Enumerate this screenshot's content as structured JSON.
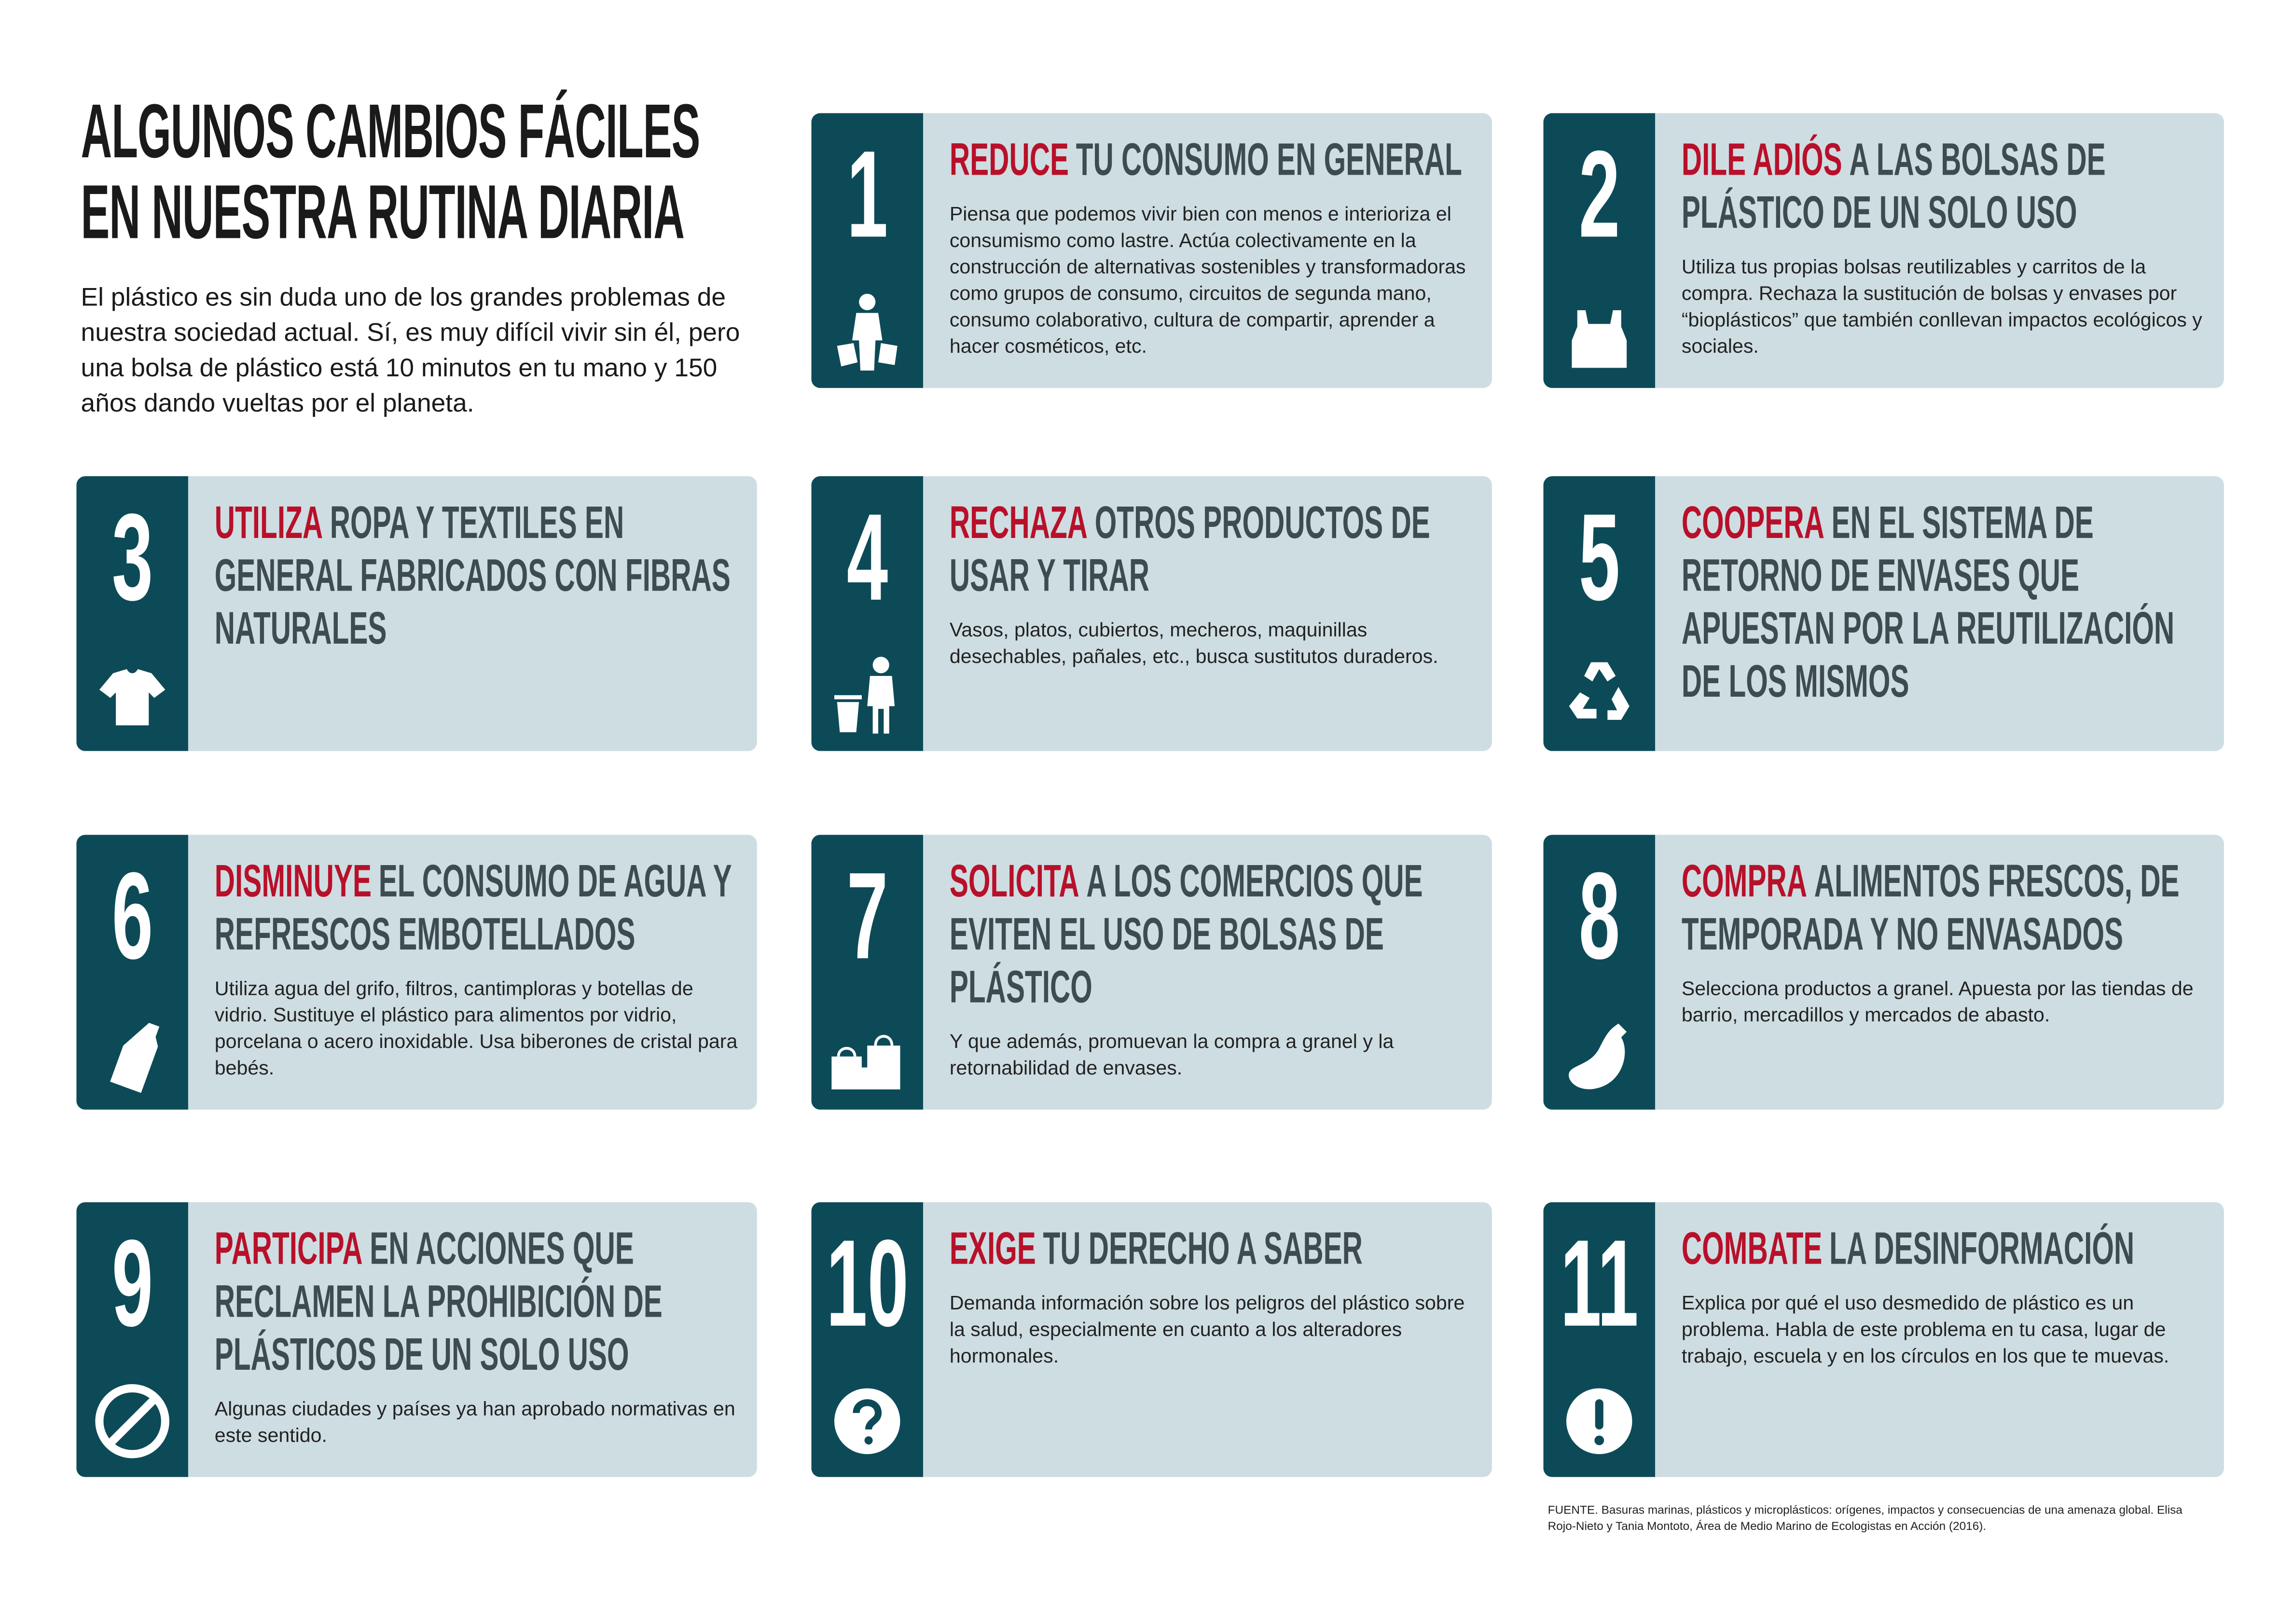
{
  "header": {
    "title_lines": [
      "ALGUNOS CAMBIOS FÁCILES",
      "EN NUESTRA RUTINA DIARIA"
    ],
    "intro": "El plástico es sin duda uno de los grandes problemas de nuestra sociedad actual. Sí, es muy difícil vivir sin él, pero una bolsa de plástico está 10 minutos en tu mano y 150 años dando vueltas por el planeta."
  },
  "cards": [
    {
      "number": "1",
      "highlight": "REDUCE",
      "title": "TU CONSUMO EN GENERAL",
      "body": "Piensa que podemos vivir bien con menos e interioriza el consumismo como lastre. Actúa colectivamente en la construcción de alternativas sostenibles y transformadoras como grupos de consumo, circuitos de segunda mano, consumo colaborativo, cultura de compartir, aprender a hacer cosméticos, etc."
    },
    {
      "number": "2",
      "highlight": "DILE ADIÓS",
      "title": "A LAS BOLSAS DE PLÁSTICO DE UN SOLO USO",
      "body": "Utiliza tus propias bolsas reutilizables y carritos de la compra. Rechaza la sustitución de bolsas y envases por “bioplásticos” que también conllevan impactos ecológicos y sociales."
    },
    {
      "number": "3",
      "highlight": "UTILIZA",
      "title": "ROPA Y TEXTILES EN GENERAL FABRICADOS CON FIBRAS NATURALES"
    },
    {
      "number": "4",
      "highlight": "RECHAZA",
      "title": "OTROS PRODUCTOS DE USAR Y TIRAR",
      "body": "Vasos, platos, cubiertos, mecheros, maquinillas desechables, pañales, etc., busca sustitutos duraderos."
    },
    {
      "number": "5",
      "highlight": "COOPERA",
      "title": "EN EL SISTEMA DE RETORNO DE ENVASES QUE APUESTAN POR LA REUTILIZACIÓN DE LOS MISMOS"
    },
    {
      "number": "6",
      "highlight": "DISMINUYE",
      "title": "EL CONSUMO DE AGUA Y REFRESCOS EMBOTELLADOS",
      "body": "Utiliza agua del grifo, filtros, cantimploras y botellas de vidrio. Sustituye el plástico para alimentos por vidrio, porcelana o acero inoxidable. Usa biberones de cristal para bebés."
    },
    {
      "number": "7",
      "highlight": "SOLICITA",
      "title": "A LOS COMERCIOS QUE EVITEN EL USO DE BOLSAS DE PLÁSTICO",
      "body": "Y que además, promuevan la compra a granel y la retornabilidad de envases."
    },
    {
      "number": "8",
      "highlight": "COMPRA",
      "title": "ALIMENTOS FRESCOS, DE TEMPORADA Y NO ENVASADOS",
      "body": "Selecciona productos a granel. Apuesta por las tiendas de barrio, mercadillos y mercados de abasto."
    },
    {
      "number": "9",
      "highlight": "PARTICIPA",
      "title": "EN ACCIONES QUE RECLAMEN LA PROHIBICIÓN DE PLÁSTICOS DE UN SOLO USO",
      "body": "Algunas ciudades y países ya han aprobado normativas en este sentido."
    },
    {
      "number": "10",
      "highlight": "EXIGE",
      "title": "TU DERECHO A SABER",
      "body": "Demanda información sobre los peligros del plástico sobre la salud, especialmente en cuanto a los alteradores hormonales."
    },
    {
      "number": "11",
      "highlight": "COMBATE",
      "title": "LA DESINFORMACIÓN",
      "body": "Explica por qué el uso desmedido de plástico es un problema. Habla de este problema en tu casa, lugar de trabajo, escuela y en los círculos en los que te muevas."
    }
  ],
  "footer": {
    "source": "FUENTE. Basuras marinas, plásticos y microplásticos: orígenes, impactos y consecuencias de una amenaza global. Elisa Rojo-Nieto y Tania Montoto, Área de Medio Marino de Ecologistas en Acción (2016)."
  }
}
